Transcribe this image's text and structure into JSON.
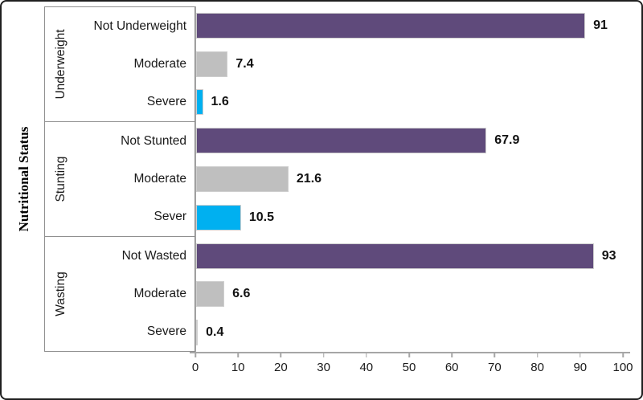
{
  "chart_data": {
    "type": "bar",
    "orientation": "horizontal",
    "title": "",
    "xlabel": "",
    "ylabel": "Nutritional Status",
    "xlim": [
      0,
      100
    ],
    "x_ticks": [
      0,
      10,
      20,
      30,
      40,
      50,
      60,
      70,
      80,
      90,
      100
    ],
    "grid": false,
    "legend": "none",
    "colors": {
      "purple": "#5f4a7b",
      "gray": "#bfbfbf",
      "blue": "#00b0f0"
    },
    "groups": [
      {
        "name": "Underweight",
        "bars": [
          {
            "label": "Not Underweight",
            "value": 91,
            "value_label": "91",
            "color": "purple"
          },
          {
            "label": "Moderate",
            "value": 7.4,
            "value_label": "7.4",
            "color": "gray"
          },
          {
            "label": "Severe",
            "value": 1.6,
            "value_label": "1.6",
            "color": "blue"
          }
        ]
      },
      {
        "name": "Stunting",
        "bars": [
          {
            "label": "Not Stunted",
            "value": 67.9,
            "value_label": "67.9",
            "color": "purple"
          },
          {
            "label": "Moderate",
            "value": 21.6,
            "value_label": "21.6",
            "color": "gray"
          },
          {
            "label": "Sever",
            "value": 10.5,
            "value_label": "10.5",
            "color": "blue"
          }
        ]
      },
      {
        "name": "Wasting",
        "bars": [
          {
            "label": "Not Wasted",
            "value": 93,
            "value_label": "93",
            "color": "purple"
          },
          {
            "label": "Moderate",
            "value": 6.6,
            "value_label": "6.6",
            "color": "gray"
          },
          {
            "label": "Severe",
            "value": 0.4,
            "value_label": "0.4",
            "color": "blue"
          }
        ]
      }
    ]
  }
}
